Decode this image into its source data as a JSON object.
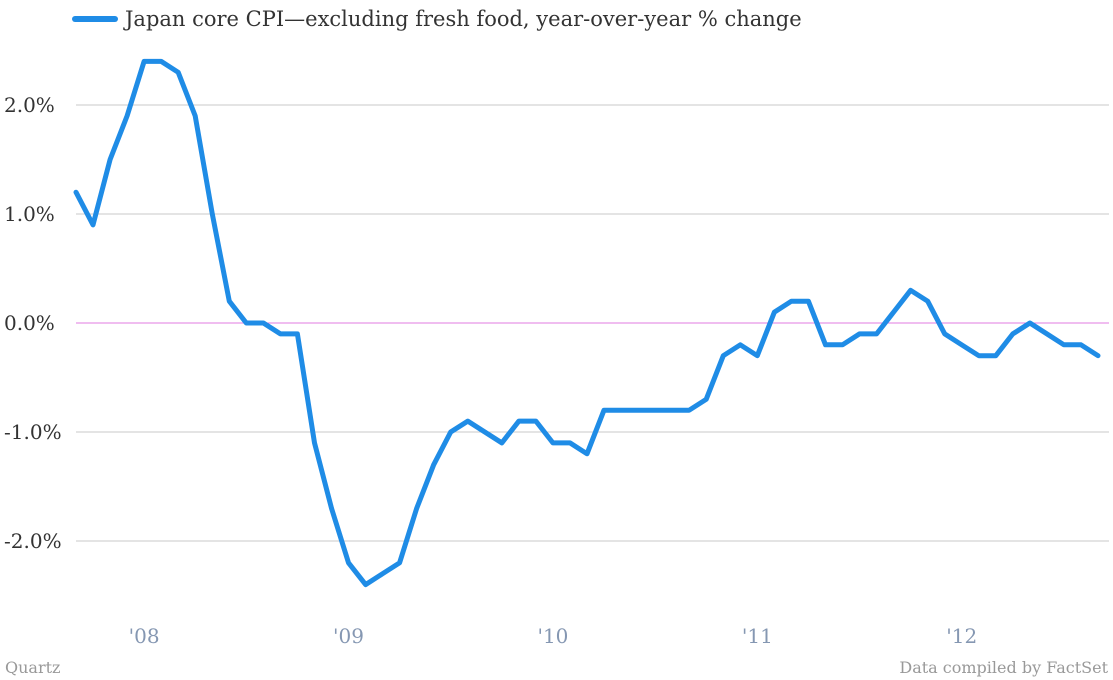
{
  "legend": {
    "label": "Japan core CPI—excluding fresh food, year-over-year % change",
    "color": "#1f8ce6"
  },
  "footer": {
    "source_left": "Quartz",
    "source_right": "Data compiled by FactSet"
  },
  "chart_data": {
    "type": "line",
    "title": "",
    "xlabel": "",
    "ylabel": "",
    "ylim": [
      -2.6,
      2.4
    ],
    "xlim": [
      "2007-09",
      "2012-09"
    ],
    "grid": true,
    "zero_line_color": "#e07be0",
    "grid_color": "#c8c8c8",
    "y_ticks": [
      {
        "value": 2,
        "label": "2.0%"
      },
      {
        "value": 1,
        "label": "1.0%"
      },
      {
        "value": 0,
        "label": "0.0%"
      },
      {
        "value": -1,
        "label": "-1.0%"
      },
      {
        "value": -2,
        "label": "-2.0%"
      }
    ],
    "x_ticks": [
      {
        "value": "2008-01",
        "label": "'08"
      },
      {
        "value": "2009-01",
        "label": "'09"
      },
      {
        "value": "2010-01",
        "label": "'10"
      },
      {
        "value": "2011-01",
        "label": "'11"
      },
      {
        "value": "2012-01",
        "label": "'12"
      }
    ],
    "series": [
      {
        "name": "Japan core CPI—excluding fresh food, year-over-year % change",
        "color": "#1f8ce6",
        "x": [
          "2007-09",
          "2007-10",
          "2007-11",
          "2007-12",
          "2008-01",
          "2008-02",
          "2008-03",
          "2008-04",
          "2008-05",
          "2008-06",
          "2008-07",
          "2008-08",
          "2008-09",
          "2008-10",
          "2008-11",
          "2008-12",
          "2009-01",
          "2009-02",
          "2009-03",
          "2009-04",
          "2009-05",
          "2009-06",
          "2009-07",
          "2009-08",
          "2009-09",
          "2009-10",
          "2009-11",
          "2009-12",
          "2010-01",
          "2010-02",
          "2010-03",
          "2010-04",
          "2010-05",
          "2010-06",
          "2010-07",
          "2010-08",
          "2010-09",
          "2010-10",
          "2010-11",
          "2010-12",
          "2011-01",
          "2011-02",
          "2011-03",
          "2011-04",
          "2011-05",
          "2011-06",
          "2011-07",
          "2011-08",
          "2011-09",
          "2011-10",
          "2011-11",
          "2011-12",
          "2012-01",
          "2012-02",
          "2012-03",
          "2012-04",
          "2012-05",
          "2012-06",
          "2012-07",
          "2012-08",
          "2012-09"
        ],
        "values": [
          1.2,
          0.9,
          1.5,
          1.9,
          2.4,
          2.4,
          2.3,
          1.9,
          1.0,
          0.2,
          0.0,
          0.0,
          -0.1,
          -0.1,
          -1.1,
          -1.7,
          -2.2,
          -2.4,
          -2.3,
          -2.2,
          -1.7,
          -1.3,
          -1.0,
          -0.9,
          -1.0,
          -1.1,
          -0.9,
          -0.9,
          -1.1,
          -1.1,
          -1.2,
          -0.8,
          -0.8,
          -0.8,
          -0.8,
          -0.8,
          -0.8,
          -0.7,
          -0.3,
          -0.2,
          -0.3,
          0.1,
          0.2,
          0.2,
          -0.2,
          -0.2,
          -0.1,
          -0.1,
          0.1,
          0.3,
          0.2,
          -0.1,
          -0.2,
          -0.3,
          -0.3,
          -0.1,
          0.0,
          -0.1,
          -0.2,
          -0.2,
          -0.3
        ]
      }
    ]
  }
}
